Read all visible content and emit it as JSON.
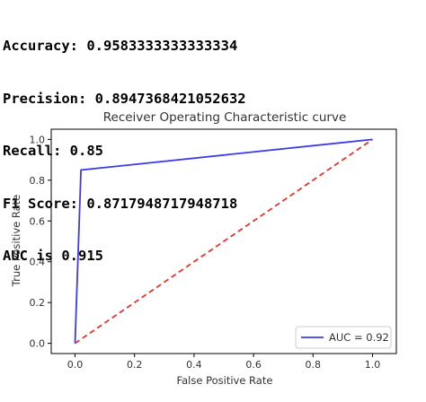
{
  "metrics": {
    "lines": [
      "Accuracy: 0.9583333333333334",
      "Precision: 0.8947368421052632",
      "Recall: 0.85",
      "F1 Score: 0.8717948717948718",
      "AUC is 0.915"
    ]
  },
  "chart_data": {
    "type": "line",
    "title": "Receiver Operating Characteristic curve",
    "xlabel": "False Positive Rate",
    "ylabel": "True Positive Rate",
    "xlim": [
      -0.08,
      1.08
    ],
    "ylim": [
      -0.05,
      1.05
    ],
    "xticks": [
      "0.0",
      "0.2",
      "0.4",
      "0.6",
      "0.8",
      "1.0"
    ],
    "yticks": [
      "0.0",
      "0.2",
      "0.4",
      "0.6",
      "0.8",
      "1.0"
    ],
    "grid": false,
    "legend_position": "lower-right",
    "series": [
      {
        "name": "AUC = 0.92",
        "x": [
          0.0,
          0.02,
          1.0
        ],
        "y": [
          0.0,
          0.85,
          1.0
        ],
        "color": "#3b3be8",
        "style": "solid"
      },
      {
        "x": [
          0.0,
          1.0
        ],
        "y": [
          0.0,
          1.0
        ],
        "color": "#e8312b",
        "style": "dashed"
      }
    ]
  }
}
